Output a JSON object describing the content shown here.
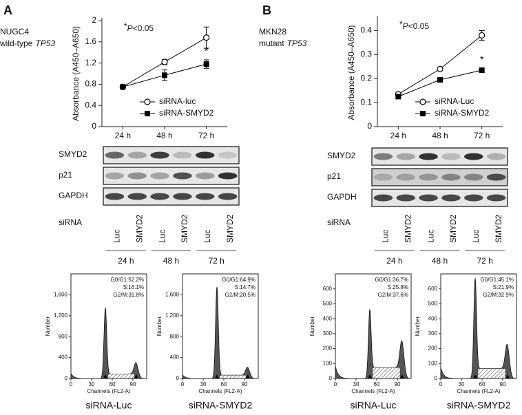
{
  "panels": [
    {
      "label": "A",
      "cell_line": "NUGC4",
      "genotype": "wild-type",
      "gene": "TP53"
    },
    {
      "label": "B",
      "cell_line": "MKN28",
      "genotype": "mutant",
      "gene": "TP53"
    }
  ],
  "blots": [
    {
      "rows": [
        "SMYD2",
        "p21",
        "GAPDH"
      ],
      "sirna_label": "siRNA",
      "lanes": [
        "Luc",
        "SMYD2",
        "Luc",
        "SMYD2",
        "Luc",
        "SMYD2"
      ],
      "timepoints": [
        "24 h",
        "48 h",
        "72 h"
      ]
    },
    {
      "rows": [
        "SMYD2",
        "p21",
        "GAPDH"
      ],
      "sirna_label": "siRNA",
      "lanes": [
        "Luc",
        "SMYD2",
        "Luc",
        "SMYD2",
        "Luc",
        "SMYD2"
      ],
      "timepoints": [
        "24 h",
        "48 h",
        "72 h"
      ]
    }
  ],
  "chart_data": [
    {
      "type": "line",
      "annotation_parts": [
        "*",
        "P",
        "<0.05"
      ],
      "ylabel": "Absorbance (A450–A650)",
      "categories": [
        "24 h",
        "48 h",
        "72 h"
      ],
      "ylim": [
        0,
        2
      ],
      "yticks": [
        0,
        0.4,
        0.8,
        1.2,
        1.6,
        2
      ],
      "legend": "lower right",
      "significance_label": "*",
      "series": [
        {
          "name": "siRNA-luc",
          "color": "#000000",
          "marker": "circle",
          "values": [
            0.75,
            1.22,
            1.68
          ],
          "errors": [
            0.02,
            0.05,
            0.2
          ]
        },
        {
          "name": "siRNA-SMYD2",
          "color": "#000000",
          "marker": "square",
          "values": [
            0.75,
            0.97,
            1.18
          ],
          "errors": [
            0.02,
            0.1,
            0.08
          ]
        }
      ]
    },
    {
      "type": "line",
      "annotation_parts": [
        "*",
        "P",
        "<0.05"
      ],
      "ylabel": "Absorbance (A450–A650)",
      "categories": [
        "24 h",
        "48 h",
        "72 h"
      ],
      "ylim": [
        0,
        0.45
      ],
      "yticks": [
        0,
        0.1,
        0.2,
        0.3,
        0.4
      ],
      "legend": "lower right",
      "significance_label": "*",
      "series": [
        {
          "name": "siRNA-Luc",
          "color": "#000000",
          "marker": "circle",
          "values": [
            0.135,
            0.24,
            0.38
          ],
          "errors": [
            0.005,
            0.006,
            0.02
          ]
        },
        {
          "name": "siRNA-SMYD2",
          "color": "#000000",
          "marker": "square",
          "values": [
            0.125,
            0.195,
            0.235
          ],
          "errors": [
            0.004,
            0.005,
            0.008
          ]
        }
      ]
    },
    {
      "type": "flow",
      "title": "siRNA-Luc",
      "xlabel": "Channels (FL2-A)",
      "ylabel": "Number",
      "xlim": [
        0,
        110
      ],
      "ylim": [
        0,
        2000
      ],
      "xticks": [
        0,
        30,
        60,
        90
      ],
      "yticks": [
        0,
        400,
        800,
        {
          "value": 1200,
          "label": "1,200"
        },
        {
          "value": 1600,
          "label": "1,600"
        }
      ],
      "annotations": [
        "G0/G1:52.2%",
        "S:16.1%",
        "G2/M:31.8%"
      ],
      "peak_channels": [
        50,
        95
      ],
      "peaks": [
        1350,
        250
      ]
    },
    {
      "type": "flow",
      "title": "siRNA-SMYD2",
      "xlabel": "Channels (FL2-A)",
      "ylabel": "Number",
      "xlim": [
        0,
        110
      ],
      "ylim": [
        0,
        2000
      ],
      "xticks": [
        0,
        30,
        60,
        90
      ],
      "yticks": [
        0,
        400,
        800,
        {
          "value": 1200,
          "label": "1,200"
        },
        {
          "value": 1600,
          "label": "1,600"
        }
      ],
      "annotations": [
        "G0/G1:64.9%",
        "S:14.7%",
        "G2/M:20.5%"
      ],
      "peak_channels": [
        50,
        95
      ],
      "peaks": [
        1750,
        180
      ]
    },
    {
      "type": "flow",
      "title": "siRNA-Luc",
      "xlabel": "Channels (FL2-A)",
      "ylabel": "Number",
      "xlim": [
        0,
        110
      ],
      "ylim": [
        0,
        700
      ],
      "xticks": [
        0,
        30,
        60,
        90
      ],
      "yticks": [
        0,
        100,
        200,
        300,
        400,
        500,
        600
      ],
      "annotations": [
        "G0/G1:36.7%",
        "S:25.8%",
        "G2/M:37.6%"
      ],
      "peak_channels": [
        50,
        97
      ],
      "peaks": [
        460,
        210
      ]
    },
    {
      "type": "flow",
      "title": "siRNA-SMYD2",
      "xlabel": "Channels (FL2-A)",
      "ylabel": "Number",
      "xlim": [
        0,
        110
      ],
      "ylim": [
        0,
        700
      ],
      "xticks": [
        0,
        30,
        60,
        90
      ],
      "yticks": [
        0,
        100,
        200,
        300,
        400,
        500,
        600
      ],
      "annotations": [
        "G0/G1:45.1%",
        "S:21.9%",
        "G2/M:32.9%"
      ],
      "peak_channels": [
        50,
        97
      ],
      "peaks": [
        670,
        190
      ]
    }
  ]
}
